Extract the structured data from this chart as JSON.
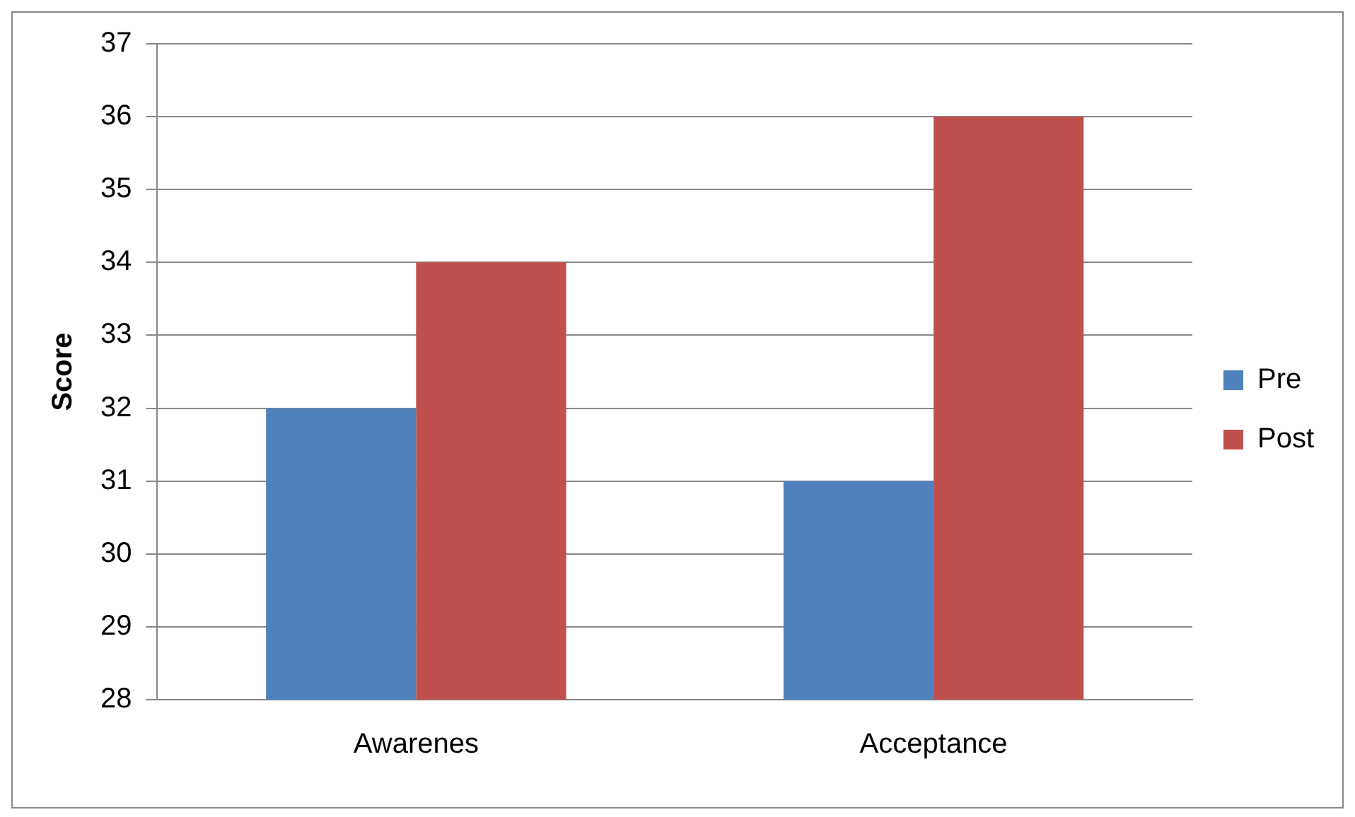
{
  "chart_data": {
    "type": "bar",
    "ylabel": "Score",
    "categories": [
      "Awarenes",
      "Acceptance"
    ],
    "series": [
      {
        "name": "Pre",
        "color": "#4f81bd",
        "values": [
          32,
          31
        ]
      },
      {
        "name": "Post",
        "color": "#c0504d",
        "values": [
          34,
          36
        ]
      }
    ],
    "ylim": [
      28,
      37
    ],
    "yticks": [
      28,
      29,
      30,
      31,
      32,
      33,
      34,
      35,
      36,
      37
    ],
    "grid": "y",
    "legend": "right"
  }
}
